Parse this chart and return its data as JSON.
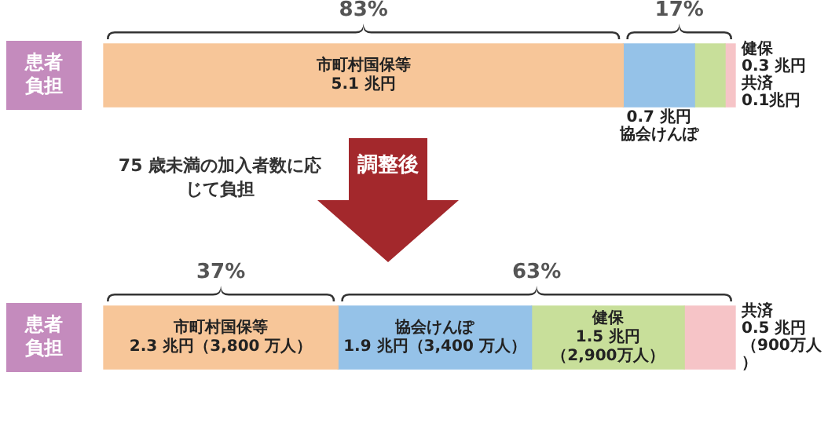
{
  "chart_data": {
    "type": "bar",
    "orientation": "horizontal",
    "stacked": true,
    "categories": [
      "患者負担",
      "患者負担"
    ],
    "series": [
      {
        "name": "市町村国保等",
        "color": "#f7c699",
        "values": [
          5.1,
          2.3
        ],
        "value_labels": [
          "5.1 兆円",
          "2.3 兆円（3,800 万人）"
        ]
      },
      {
        "name": "協会けんぽ",
        "color": "#95c2e8",
        "values": [
          0.7,
          1.9
        ],
        "value_labels": [
          "0.7 兆円",
          "1.9 兆円（3,400 万人）"
        ]
      },
      {
        "name": "健保",
        "color": "#c8df9a",
        "values": [
          0.3,
          1.5
        ],
        "value_labels": [
          "0.3 兆円",
          "1.5 兆円（2,900万人）"
        ]
      },
      {
        "name": "共済",
        "color": "#f6c4c7",
        "values": [
          0.1,
          0.5
        ],
        "value_labels": [
          "0.1兆円",
          "0.5 兆円（900万人）"
        ]
      }
    ],
    "annotations": [
      "83%",
      "17%",
      "37%",
      "63%",
      "75 歳未満の加入者数に応じて負担",
      "調整後"
    ]
  }
}
